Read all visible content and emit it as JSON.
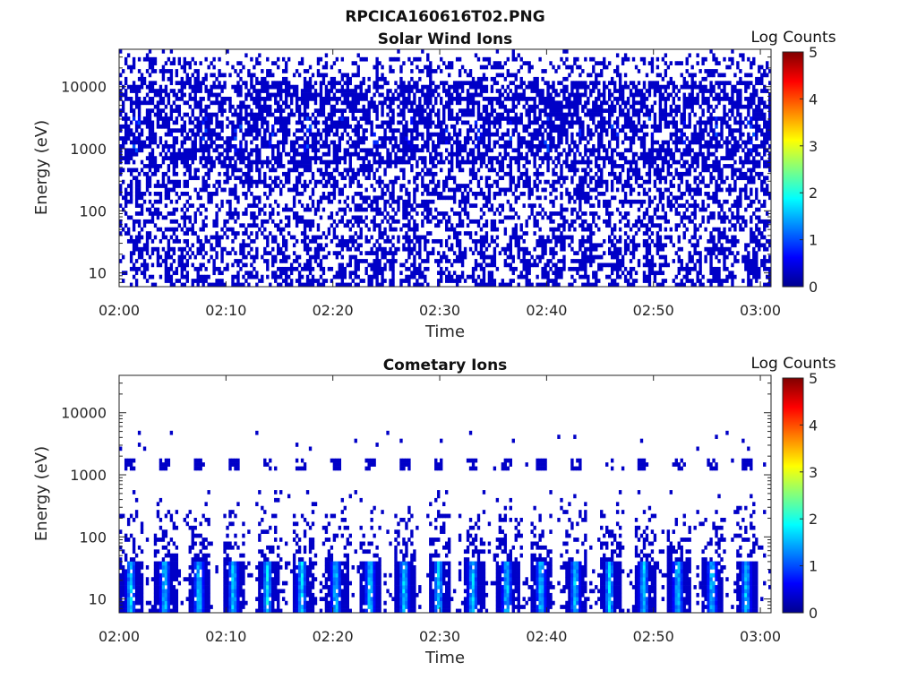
{
  "figure": {
    "title": "RPCICA160616T02.PNG"
  },
  "chart_data": [
    {
      "type": "heatmap",
      "title": "Solar Wind Ions",
      "xlabel": "Time",
      "ylabel": "Energy (eV)",
      "x_ticks": [
        "02:00",
        "02:10",
        "02:20",
        "02:30",
        "02:40",
        "02:50",
        "03:00"
      ],
      "x_range": [
        "02:00",
        "03:01"
      ],
      "y_scale": "log",
      "y_ticks": [
        10,
        100,
        1000,
        10000
      ],
      "y_tick_labels": [
        "10",
        "100",
        "1000",
        "10000"
      ],
      "y_range": [
        6,
        40000
      ],
      "colorbar": {
        "label": "Log Counts",
        "min": 0,
        "max": 5,
        "ticks": [
          "0",
          "1",
          "2",
          "3",
          "4",
          "5"
        ],
        "colormap": "jet"
      },
      "grid": false,
      "features": {
        "sweep_period_min": 3.2,
        "blue_bands_eV": [
          1000,
          1500,
          3000,
          7000,
          15000
        ],
        "peak_log_counts": 0.8,
        "background_log_counts": 0.1
      }
    },
    {
      "type": "heatmap",
      "title": "Cometary Ions",
      "xlabel": "Time",
      "ylabel": "Energy (eV)",
      "x_ticks": [
        "02:00",
        "02:10",
        "02:20",
        "02:30",
        "02:40",
        "02:50",
        "03:00"
      ],
      "x_range": [
        "02:00",
        "03:01"
      ],
      "y_scale": "log",
      "y_ticks": [
        10,
        100,
        1000,
        10000
      ],
      "y_tick_labels": [
        "10",
        "100",
        "1000",
        "10000"
      ],
      "y_range": [
        6,
        40000
      ],
      "colorbar": {
        "label": "Log Counts",
        "min": 0,
        "max": 5,
        "ticks": [
          "0",
          "1",
          "2",
          "3",
          "4",
          "5"
        ],
        "colormap": "jet"
      },
      "grid": false,
      "features": {
        "sweep_period_min": 3.2,
        "low_energy_peak_eV": 20,
        "peak_log_counts": 1.6,
        "secondary_band_eV": 1500
      }
    }
  ]
}
